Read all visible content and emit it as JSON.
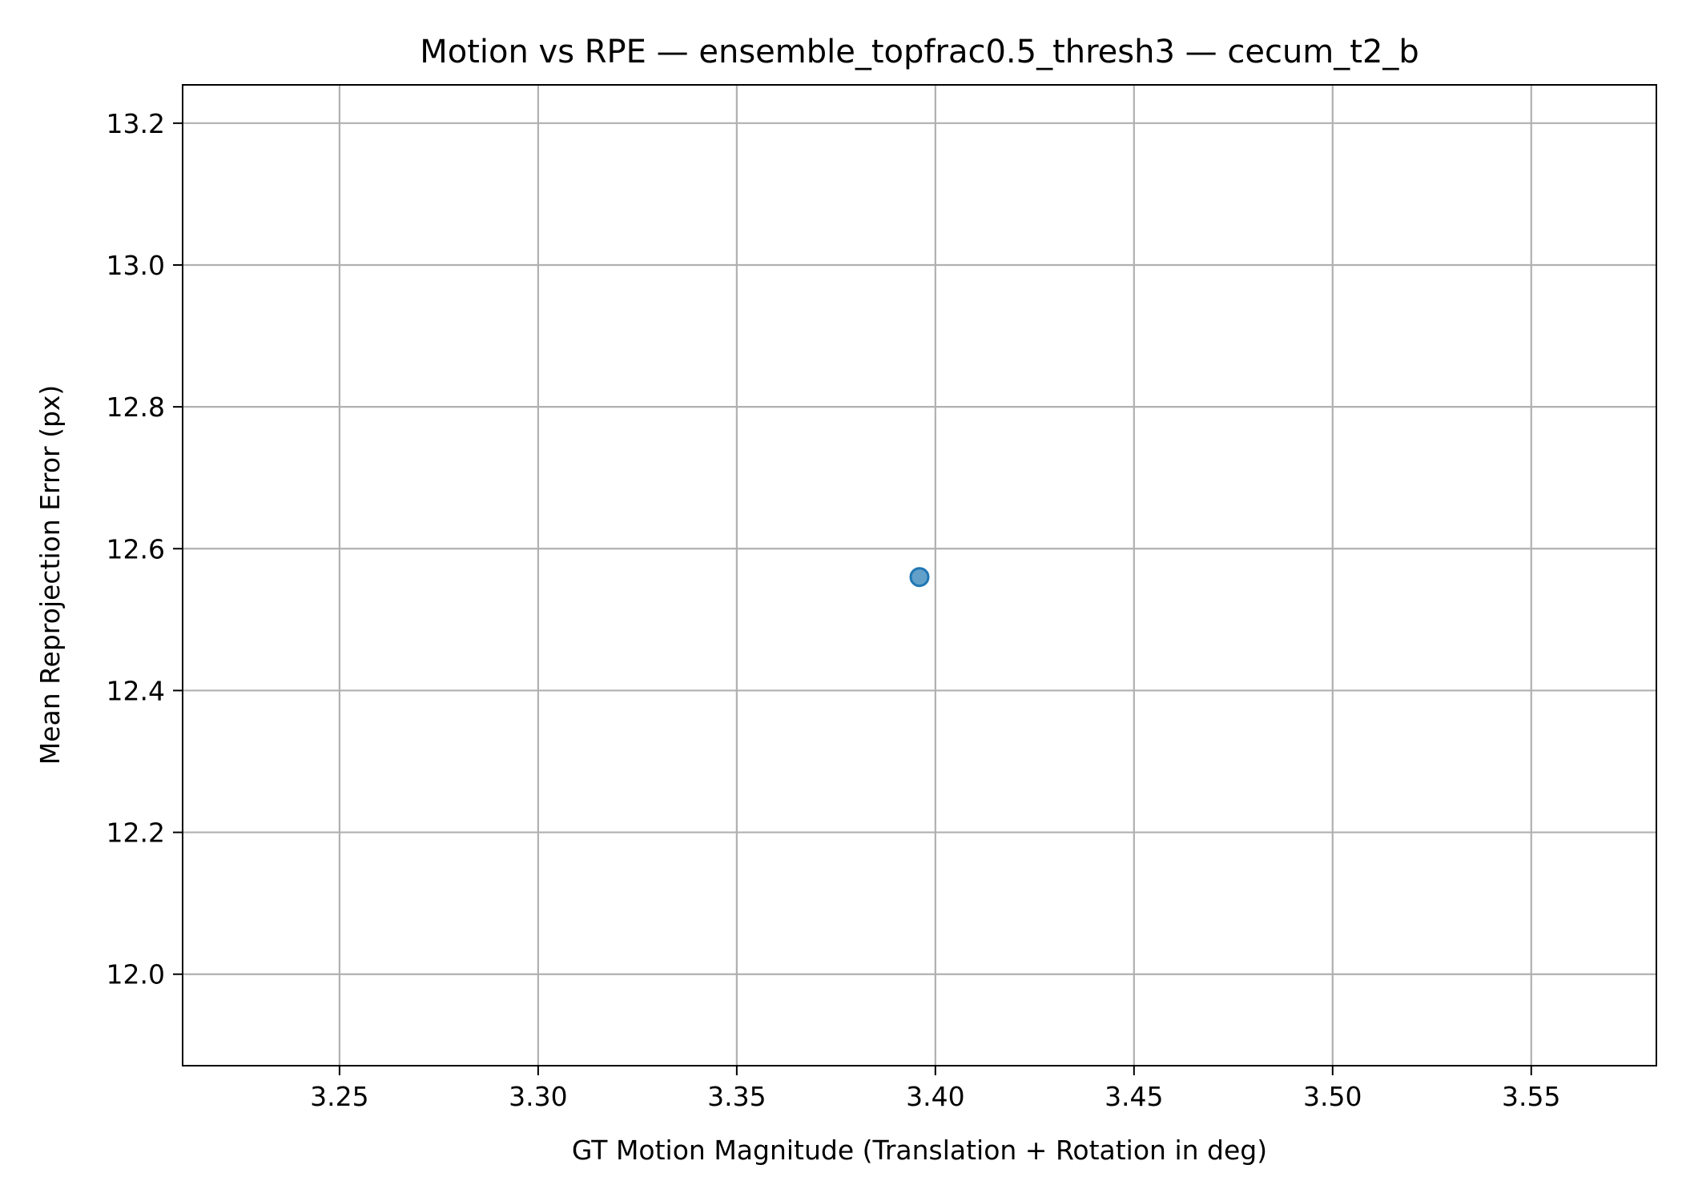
{
  "chart_data": {
    "type": "scatter",
    "title": "Motion vs RPE — ensemble_topfrac0.5_thresh3 — cecum_t2_b",
    "xlabel": "GT Motion Magnitude (Translation + Rotation in deg)",
    "ylabel": "Mean Reprojection Error (px)",
    "xlim": [
      3.2105,
      3.5815
    ],
    "ylim": [
      11.871,
      13.254
    ],
    "x_ticks": [
      3.25,
      3.3,
      3.35,
      3.4,
      3.45,
      3.5,
      3.55
    ],
    "x_tick_labels": [
      "3.25",
      "3.30",
      "3.35",
      "3.40",
      "3.45",
      "3.50",
      "3.55"
    ],
    "y_ticks": [
      12.0,
      12.2,
      12.4,
      12.6,
      12.8,
      13.0,
      13.2
    ],
    "y_tick_labels": [
      "12.0",
      "12.2",
      "12.4",
      "12.6",
      "12.8",
      "13.0",
      "13.2"
    ],
    "grid": true,
    "series": [
      {
        "color": "#1f77b4",
        "points": [
          {
            "x": 3.396,
            "y": 12.56
          }
        ]
      }
    ]
  }
}
